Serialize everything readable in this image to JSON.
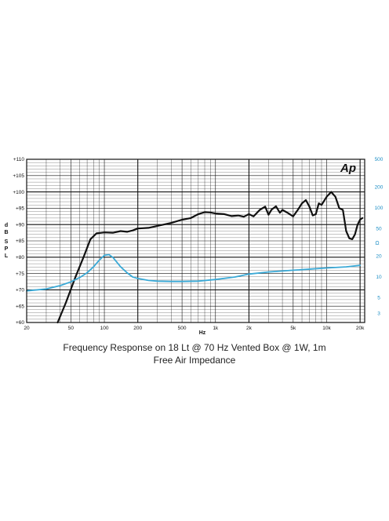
{
  "chart_data": {
    "type": "line",
    "title": "Frequency Response on 18 Lt @ 70 Hz Vented Box @ 1W, 1m",
    "subtitle": "Free Air Impedance",
    "brand": "Ap",
    "xlabel": "Hz",
    "ylabel": "dB SPL",
    "ylabel_right": "Ω",
    "x_scale": "log",
    "xlim": [
      20,
      22000
    ],
    "ylim": [
      60,
      110
    ],
    "y2_scale": "log",
    "y2lim": [
      2.2,
      500
    ],
    "x_ticks": [
      "20",
      "50",
      "100",
      "200",
      "500",
      "1k",
      "2k",
      "5k",
      "10k",
      "20k"
    ],
    "x_tick_values": [
      20,
      50,
      100,
      200,
      500,
      1000,
      2000,
      5000,
      10000,
      20000
    ],
    "y_ticks": [
      "+60",
      "+65",
      "+70",
      "+75",
      "+80",
      "+85",
      "+90",
      "+95",
      "+100",
      "+105",
      "+110"
    ],
    "y_tick_values": [
      60,
      65,
      70,
      75,
      80,
      85,
      90,
      95,
      100,
      105,
      110
    ],
    "y2_ticks": [
      "3",
      "5",
      "10",
      "20",
      "50",
      "100",
      "200",
      "500"
    ],
    "y2_tick_values": [
      3,
      5,
      10,
      20,
      50,
      100,
      200,
      500
    ],
    "grid": true,
    "series": [
      {
        "axis": "left",
        "color": "#111111",
        "x": [
          38,
          45,
          55,
          65,
          75,
          85,
          100,
          120,
          140,
          160,
          180,
          200,
          250,
          300,
          400,
          500,
          600,
          700,
          800,
          900,
          1000,
          1200,
          1400,
          1600,
          1800,
          2000,
          2200,
          2500,
          2800,
          3000,
          3200,
          3500,
          3800,
          4000,
          4500,
          5000,
          5500,
          6000,
          6500,
          7000,
          7500,
          8000,
          8500,
          9000,
          10000,
          11000,
          12000,
          13000,
          14000,
          15000,
          16000,
          17000,
          18000,
          19000,
          20000,
          21000
        ],
        "y": [
          60,
          66,
          74,
          80,
          85.5,
          87.3,
          87.6,
          87.5,
          88,
          87.8,
          88.2,
          88.8,
          89,
          89.6,
          90.5,
          91.5,
          92,
          93.2,
          93.8,
          93.7,
          93.4,
          93.2,
          92.6,
          92.8,
          92.4,
          93.2,
          92.5,
          94.5,
          95.5,
          93,
          94.6,
          95.6,
          93.6,
          94.5,
          93.5,
          92.5,
          94.5,
          96.5,
          97.5,
          95.5,
          92.8,
          93.2,
          96.5,
          96,
          98.5,
          100,
          98.5,
          95,
          94.5,
          88,
          85.8,
          85.5,
          87,
          90,
          91.5,
          92
        ]
      },
      {
        "axis": "right",
        "color": "#3aa9d6",
        "x": [
          20,
          30,
          40,
          50,
          60,
          70,
          80,
          90,
          100,
          110,
          120,
          140,
          160,
          180,
          200,
          250,
          300,
          400,
          500,
          700,
          1000,
          1500,
          2000,
          3000,
          5000,
          10000,
          15000,
          20000
        ],
        "y": [
          6.3,
          6.7,
          7.5,
          8.5,
          9.8,
          11.5,
          14,
          17.5,
          20.5,
          21,
          19,
          14,
          11.5,
          10,
          9.5,
          8.9,
          8.7,
          8.6,
          8.6,
          8.7,
          9.2,
          10,
          11,
          11.8,
          12.5,
          13.5,
          14,
          14.7
        ]
      }
    ]
  }
}
